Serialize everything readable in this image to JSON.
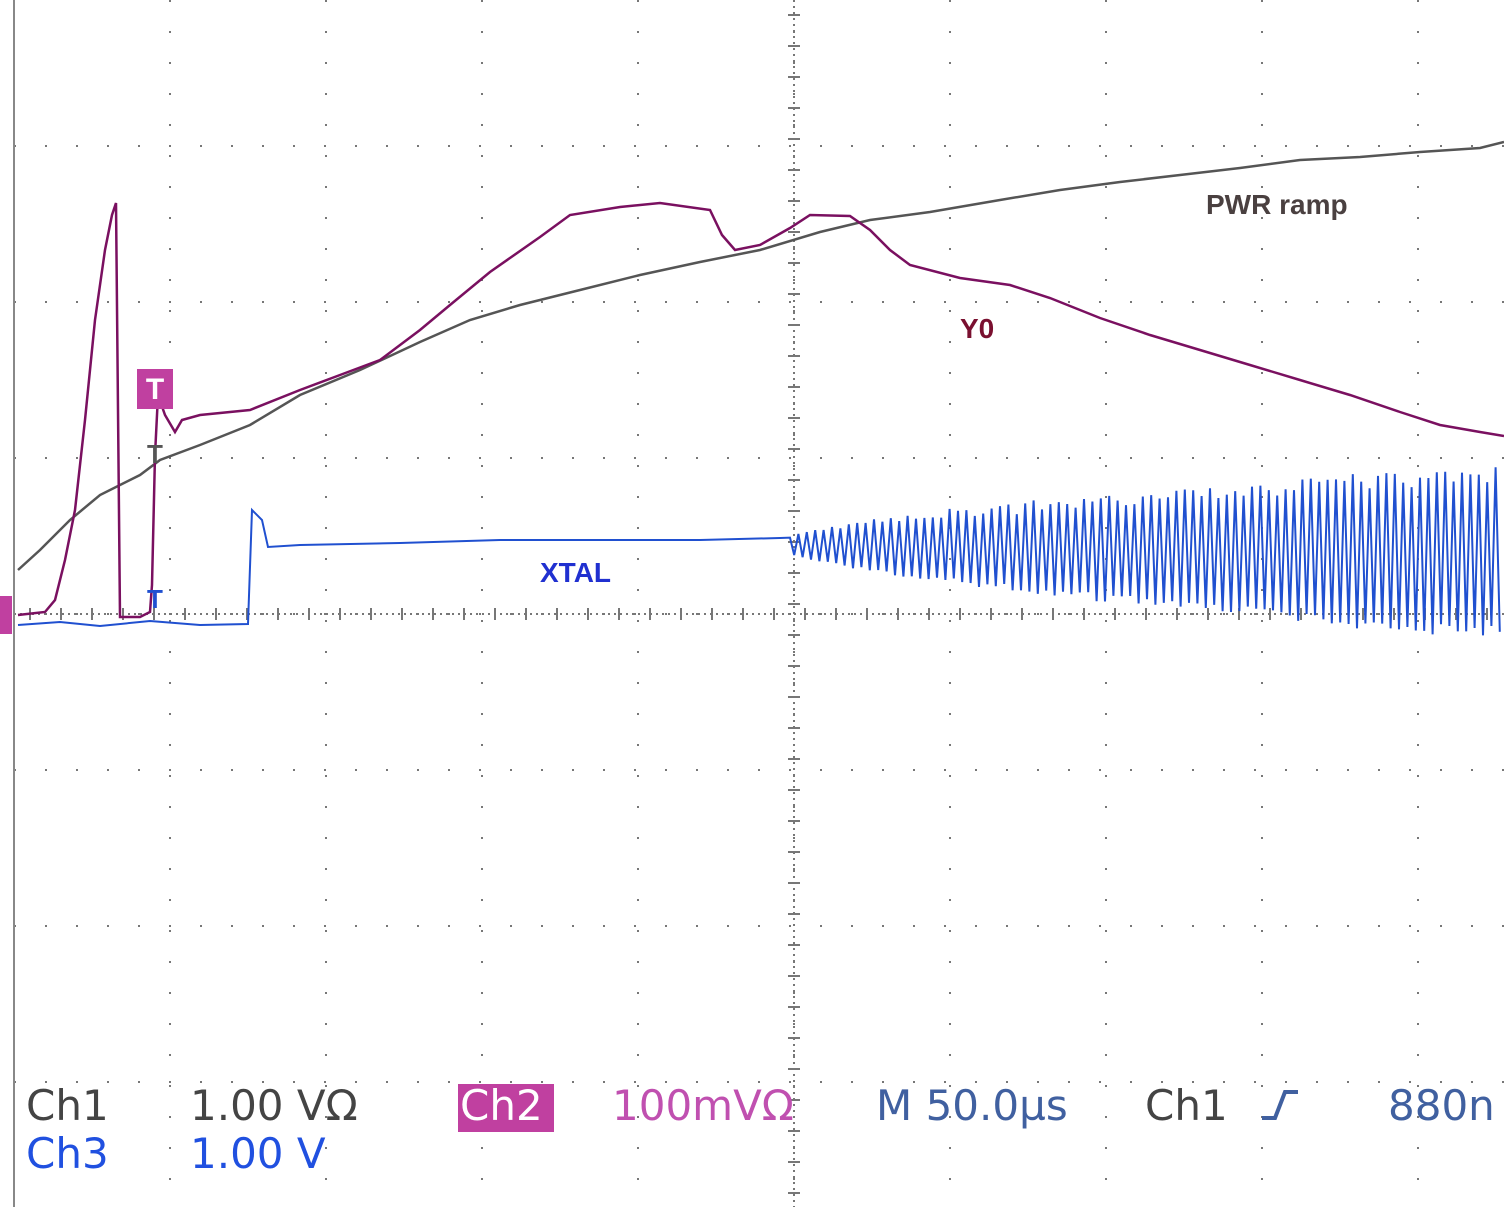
{
  "traces": {
    "pwr": "PWR ramp",
    "y0": "Y0",
    "xtal": "XTAL"
  },
  "trigger_marker": "T",
  "readout": {
    "ch1": {
      "name": "Ch1",
      "scale": "1.00 VΩ"
    },
    "ch2": {
      "name": "Ch2",
      "scale": "100mVΩ"
    },
    "timebase": "M 50.0µs",
    "trigger": {
      "source": "Ch1",
      "level": "880n"
    },
    "ch3": {
      "name": "Ch3",
      "scale": "1.00 V"
    }
  }
}
